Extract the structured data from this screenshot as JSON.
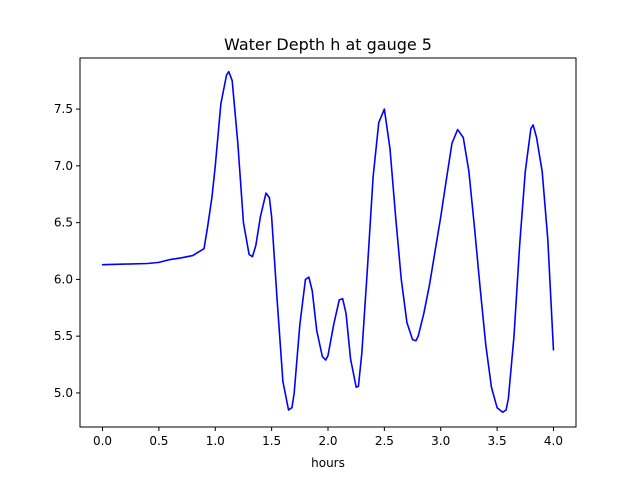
{
  "chart_data": {
    "type": "line",
    "title": "Water Depth h at gauge 5",
    "xlabel": "hours",
    "ylabel": "",
    "xlim": [
      -0.2,
      4.2
    ],
    "ylim": [
      4.7,
      7.95
    ],
    "xticks": [
      0.0,
      0.5,
      1.0,
      1.5,
      2.0,
      2.5,
      3.0,
      3.5,
      4.0
    ],
    "xtick_labels": [
      "0.0",
      "0.5",
      "1.0",
      "1.5",
      "2.0",
      "2.5",
      "3.0",
      "3.5",
      "4.0"
    ],
    "yticks": [
      5.0,
      5.5,
      6.0,
      6.5,
      7.0,
      7.5
    ],
    "ytick_labels": [
      "5.0",
      "5.5",
      "6.0",
      "6.5",
      "7.0",
      "7.5"
    ],
    "grid": false,
    "series": [
      {
        "color": "#0000ff",
        "x": [
          0.0,
          0.2,
          0.4,
          0.5,
          0.6,
          0.7,
          0.8,
          0.9,
          0.93,
          0.97,
          1.0,
          1.05,
          1.1,
          1.12,
          1.15,
          1.2,
          1.25,
          1.3,
          1.33,
          1.36,
          1.4,
          1.45,
          1.48,
          1.5,
          1.55,
          1.6,
          1.65,
          1.68,
          1.7,
          1.75,
          1.8,
          1.83,
          1.86,
          1.9,
          1.95,
          1.98,
          2.0,
          2.05,
          2.1,
          2.13,
          2.16,
          2.2,
          2.25,
          2.27,
          2.3,
          2.35,
          2.4,
          2.45,
          2.5,
          2.55,
          2.6,
          2.65,
          2.7,
          2.75,
          2.78,
          2.8,
          2.85,
          2.9,
          2.95,
          3.0,
          3.05,
          3.1,
          3.15,
          3.2,
          3.25,
          3.3,
          3.35,
          3.4,
          3.45,
          3.5,
          3.55,
          3.58,
          3.6,
          3.65,
          3.7,
          3.75,
          3.8,
          3.82,
          3.85,
          3.9,
          3.95,
          4.0
        ],
        "y": [
          6.13,
          6.135,
          6.14,
          6.15,
          6.175,
          6.19,
          6.21,
          6.27,
          6.45,
          6.72,
          7.0,
          7.55,
          7.8,
          7.83,
          7.75,
          7.2,
          6.5,
          6.22,
          6.2,
          6.3,
          6.55,
          6.76,
          6.72,
          6.55,
          5.8,
          5.1,
          4.85,
          4.87,
          5.0,
          5.6,
          6.0,
          6.02,
          5.9,
          5.55,
          5.32,
          5.29,
          5.33,
          5.6,
          5.82,
          5.83,
          5.7,
          5.3,
          5.05,
          5.06,
          5.35,
          6.1,
          6.9,
          7.38,
          7.5,
          7.15,
          6.55,
          6.0,
          5.62,
          5.47,
          5.46,
          5.5,
          5.7,
          5.95,
          6.25,
          6.55,
          6.88,
          7.2,
          7.32,
          7.25,
          6.95,
          6.45,
          5.92,
          5.42,
          5.05,
          4.87,
          4.83,
          4.85,
          4.95,
          5.5,
          6.3,
          6.95,
          7.33,
          7.36,
          7.25,
          6.95,
          6.35,
          5.38
        ]
      }
    ]
  }
}
